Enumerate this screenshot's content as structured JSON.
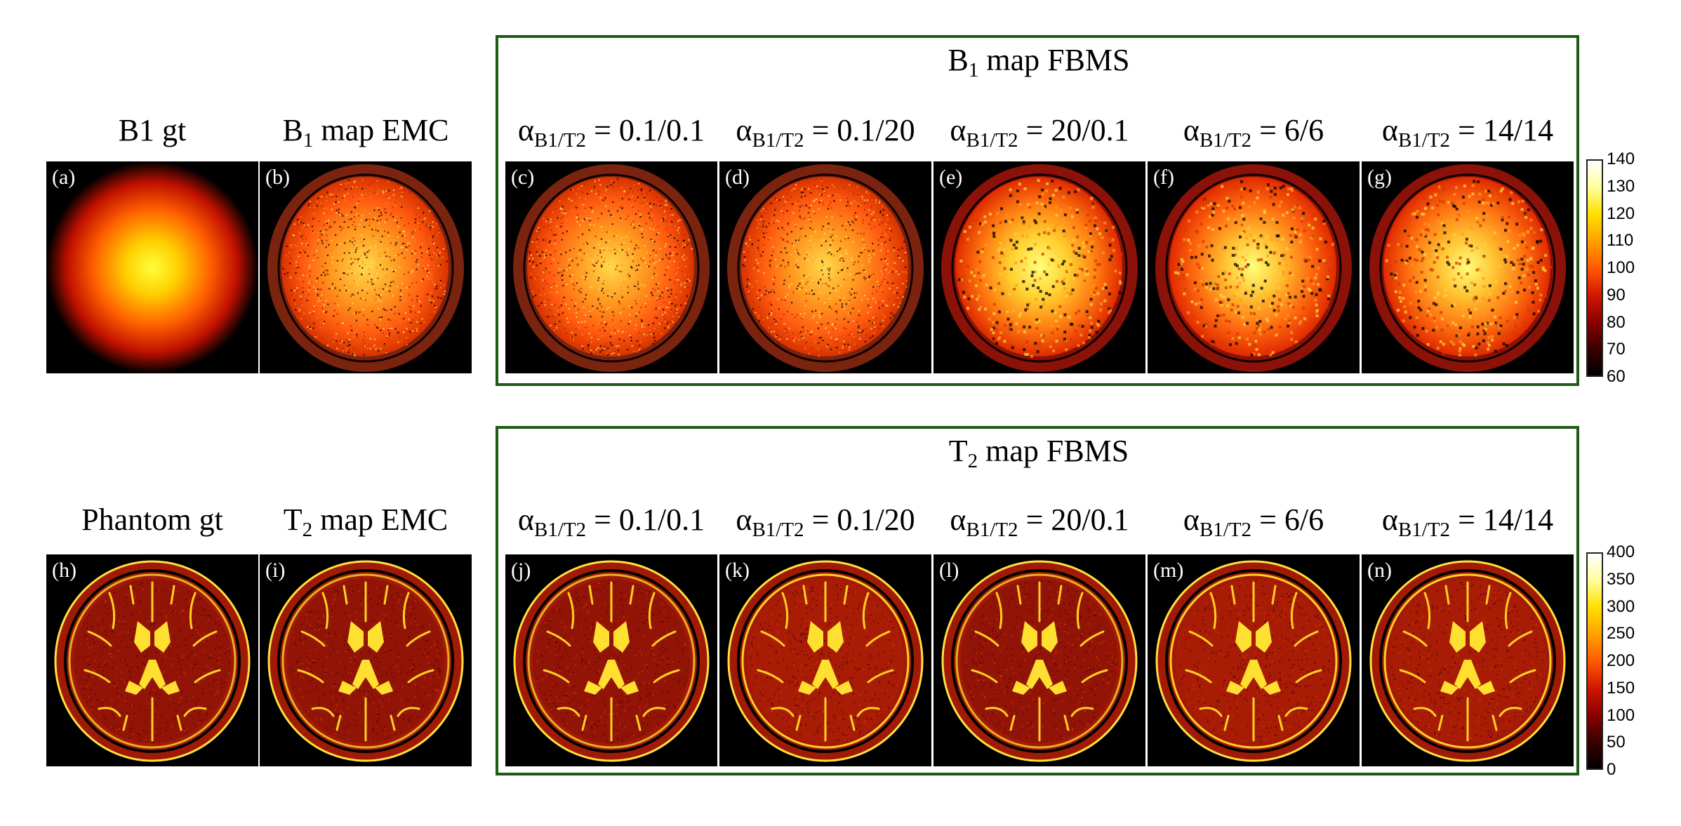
{
  "figure": {
    "colormap": [
      "#000000",
      "#3a0000",
      "#8b0000",
      "#d01800",
      "#ff5a00",
      "#ffa000",
      "#ffe000",
      "#ffff9a",
      "#ffffff"
    ],
    "frame_color": "#1f5a16",
    "rows": [
      {
        "id": "b1",
        "group_title": {
          "main": "B",
          "sub": "1",
          "rest": " map FBMS"
        },
        "columns": [
          {
            "main": "B1 gt",
            "sub": "",
            "rest": ""
          },
          {
            "main": "B",
            "sub": "1",
            "rest": " map EMC"
          },
          {
            "main": "α",
            "sub": "B1/T2",
            "rest": " = 0.1/0.1"
          },
          {
            "main": "α",
            "sub": "B1/T2",
            "rest": " = 0.1/20"
          },
          {
            "main": "α",
            "sub": "B1/T2",
            "rest": " = 20/0.1"
          },
          {
            "main": "α",
            "sub": "B1/T2",
            "rest": " = 6/6"
          },
          {
            "main": "α",
            "sub": "B1/T2",
            "rest": " = 14/14"
          }
        ],
        "panel_labels": [
          "(a)",
          "(b)",
          "(c)",
          "(d)",
          "(e)",
          "(f)",
          "(g)"
        ],
        "colorbar": {
          "min": 60,
          "max": 140,
          "ticks": [
            "140",
            "130",
            "120",
            "110",
            "100",
            "90",
            "80",
            "70",
            "60"
          ]
        }
      },
      {
        "id": "t2",
        "group_title": {
          "main": "T",
          "sub": "2",
          "rest": " map FBMS"
        },
        "columns": [
          {
            "main": "Phantom gt",
            "sub": "",
            "rest": ""
          },
          {
            "main": "T",
            "sub": "2",
            "rest": " map EMC"
          },
          {
            "main": "α",
            "sub": "B1/T2",
            "rest": " = 0.1/0.1"
          },
          {
            "main": "α",
            "sub": "B1/T2",
            "rest": " = 0.1/20"
          },
          {
            "main": "α",
            "sub": "B1/T2",
            "rest": " = 20/0.1"
          },
          {
            "main": "α",
            "sub": "B1/T2",
            "rest": " = 6/6"
          },
          {
            "main": "α",
            "sub": "B1/T2",
            "rest": " = 14/14"
          }
        ],
        "panel_labels": [
          "(h)",
          "(i)",
          "(j)",
          "(k)",
          "(l)",
          "(m)",
          "(n)"
        ],
        "colorbar": {
          "min": 0,
          "max": 400,
          "ticks": [
            "400",
            "350",
            "300",
            "250",
            "200",
            "150",
            "100",
            "50",
            "0"
          ]
        }
      }
    ]
  }
}
